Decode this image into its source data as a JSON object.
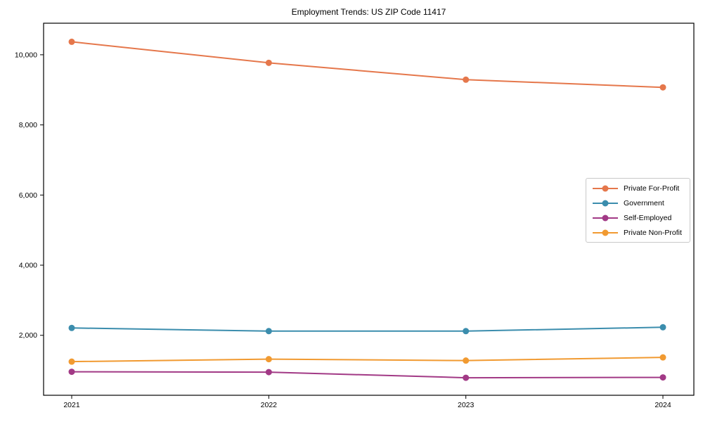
{
  "chart_data": {
    "type": "line",
    "title": "Employment Trends: US ZIP Code 11417",
    "categories": [
      "2021",
      "2022",
      "2023",
      "2024"
    ],
    "series": [
      {
        "name": "Private For-Profit",
        "color": "#e5774b",
        "values": [
          10370,
          9770,
          9290,
          9070
        ]
      },
      {
        "name": "Government",
        "color": "#3b8dad",
        "values": [
          2210,
          2120,
          2120,
          2230
        ]
      },
      {
        "name": "Self-Employed",
        "color": "#a23a86",
        "values": [
          960,
          950,
          790,
          800
        ]
      },
      {
        "name": "Private Non-Profit",
        "color": "#f19a31",
        "values": [
          1250,
          1320,
          1280,
          1370
        ]
      }
    ],
    "xlabel": "",
    "ylabel": "",
    "ylim": [
      290,
      10900
    ],
    "yticks": [
      {
        "value": 2000,
        "label": "2,000"
      },
      {
        "value": 4000,
        "label": "4,000"
      },
      {
        "value": 6000,
        "label": "6,000"
      },
      {
        "value": 8000,
        "label": "8,000"
      },
      {
        "value": 10000,
        "label": "10,000"
      }
    ],
    "grid": false,
    "legend_position": "right-center",
    "axis_color": "#000000",
    "background_color": "#ffffff"
  }
}
